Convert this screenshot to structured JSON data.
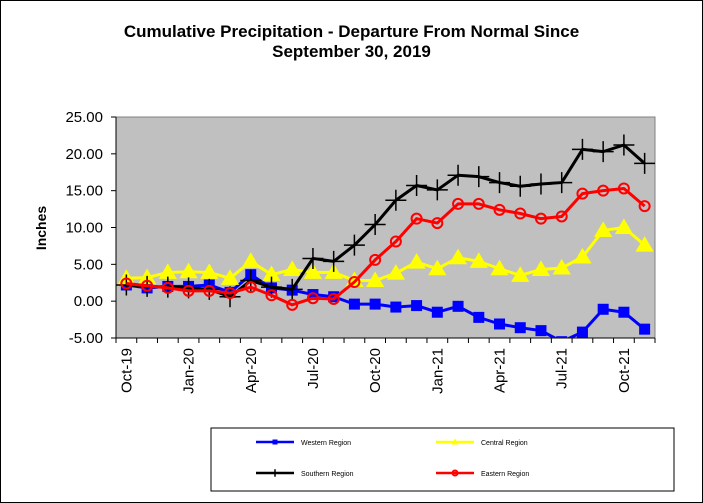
{
  "chart_data": {
    "type": "line",
    "title_line1": "Cumulative Precipitation - Departure From Normal Since",
    "title_line2": "September 30, 2019",
    "ylabel": "Inches",
    "ylim": [
      -5,
      25
    ],
    "yticks": [
      "25.00",
      "20.00",
      "15.00",
      "10.00",
      "5.00",
      "0.00",
      "-5.00"
    ],
    "grid": false,
    "legend_position": "bottom",
    "plot_background": "#c0c0c0",
    "xtick_labels": [
      {
        "index": 0,
        "label": "Oct-19"
      },
      {
        "index": 3,
        "label": "Jan-20"
      },
      {
        "index": 6,
        "label": "Apr-20"
      },
      {
        "index": 9,
        "label": "Jul-20"
      },
      {
        "index": 12,
        "label": "Oct-20"
      },
      {
        "index": 15,
        "label": "Jan-21"
      },
      {
        "index": 18,
        "label": "Apr-21"
      },
      {
        "index": 21,
        "label": "Jul-21"
      },
      {
        "index": 24,
        "label": "Oct-21"
      }
    ],
    "series": [
      {
        "name": "Western Region",
        "color": "#0000ff",
        "marker": "square",
        "values": [
          2.2,
          1.8,
          2.0,
          2.0,
          2.2,
          1.2,
          3.6,
          1.8,
          1.5,
          0.9,
          0.6,
          -0.4,
          -0.4,
          -0.8,
          -0.6,
          -1.5,
          -0.7,
          -2.2,
          -3.1,
          -3.6,
          -4.0,
          -5.5,
          -4.2,
          -1.1,
          -1.5,
          -3.8
        ]
      },
      {
        "name": "Central Region",
        "color": "#ffff00",
        "marker": "triangle",
        "values": [
          3.1,
          3.2,
          3.9,
          4.0,
          3.9,
          3.1,
          5.4,
          3.6,
          4.3,
          3.9,
          3.9,
          2.8,
          2.8,
          3.8,
          5.3,
          4.4,
          5.9,
          5.4,
          4.4,
          3.5,
          4.3,
          4.5,
          6.0,
          9.6,
          10.0,
          7.6
        ]
      },
      {
        "name": "Southern Region",
        "color": "#000000",
        "marker": "plus",
        "values": [
          2.2,
          2.0,
          1.9,
          1.8,
          1.6,
          0.6,
          2.8,
          1.9,
          1.6,
          5.8,
          5.4,
          7.6,
          10.4,
          13.7,
          15.7,
          15.1,
          17.1,
          16.9,
          16.1,
          15.6,
          15.9,
          16.1,
          20.6,
          20.3,
          21.2,
          18.7
        ]
      },
      {
        "name": "Eastern Region",
        "color": "#ff0000",
        "marker": "circle",
        "values": [
          2.4,
          2.1,
          1.8,
          1.4,
          1.4,
          1.1,
          1.9,
          0.8,
          -0.5,
          0.4,
          0.3,
          2.6,
          5.6,
          8.1,
          11.2,
          10.6,
          13.2,
          13.2,
          12.4,
          11.9,
          11.2,
          11.5,
          14.6,
          15.0,
          15.3,
          12.9
        ]
      }
    ]
  }
}
